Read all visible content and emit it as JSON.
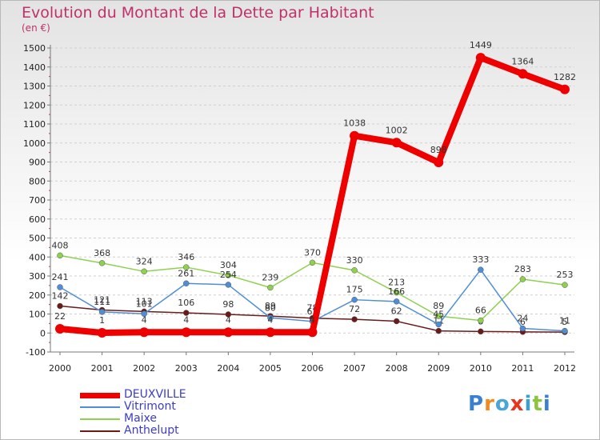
{
  "title": "Evolution du Montant de la Dette par Habitant",
  "subtitle": "(en €)",
  "logo_text": "Proxiti",
  "chart_data": {
    "type": "line",
    "title": "Evolution du Montant de la Dette par Habitant",
    "ylabel": "(en €)",
    "x": [
      2000,
      2001,
      2002,
      2003,
      2004,
      2005,
      2006,
      2007,
      2008,
      2009,
      2010,
      2011,
      2012
    ],
    "ylim": [
      -100,
      1500
    ],
    "ytick_step": 100,
    "grid": "horizontal dashed",
    "legend_position": "bottom-left",
    "series": [
      {
        "name": "Anthelupt",
        "color": "#6b1a1a",
        "values": [
          142,
          121,
          113,
          106,
          98,
          89,
          78,
          72,
          62,
          11,
          8,
          6,
          5
        ]
      },
      {
        "name": "Maixe",
        "color": "#8fd14f",
        "values": [
          408,
          368,
          324,
          346,
          304,
          239,
          370,
          330,
          213,
          89,
          66,
          283,
          253
        ]
      },
      {
        "name": "Vitrimont",
        "color": "#4f8ed6",
        "values": [
          241,
          111,
          101,
          261,
          254,
          80,
          61,
          175,
          166,
          45,
          333,
          24,
          11
        ]
      },
      {
        "name": "DEUXVILLE",
        "color": "#ee0000",
        "values": [
          22,
          1,
          4,
          4,
          4,
          4,
          4,
          1038,
          1002,
          898,
          1449,
          1364,
          1282
        ]
      }
    ]
  }
}
